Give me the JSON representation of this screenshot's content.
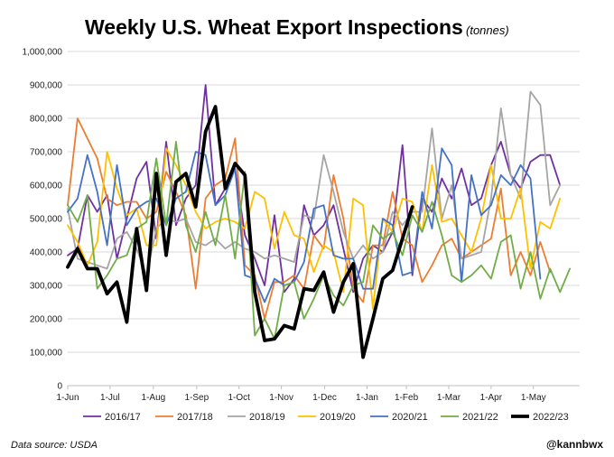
{
  "chart_data": {
    "type": "line",
    "title": "Weekly U.S. Wheat Export Inspections",
    "unit_label": "(tonnes)",
    "source": "Data source: USDA",
    "credit": "@kannbwx",
    "ylim": [
      0,
      1000000
    ],
    "yticks": [
      0,
      100000,
      200000,
      300000,
      400000,
      500000,
      600000,
      700000,
      800000,
      900000,
      1000000
    ],
    "ytick_labels": [
      "0",
      "100,000",
      "200,000",
      "300,000",
      "400,000",
      "500,000",
      "600,000",
      "700,000",
      "800,000",
      "900,000",
      "1,000,000"
    ],
    "xlim": [
      0,
      52
    ],
    "xticks": [
      0,
      4.3,
      8.7,
      13.1,
      17.4,
      21.7,
      26.1,
      30.4,
      34.4,
      38.7,
      43,
      47.3
    ],
    "xtick_labels": [
      "1-Jun",
      "1-Jul",
      "1-Aug",
      "1-Sep",
      "1-Oct",
      "1-Nov",
      "1-Dec",
      "1-Jan",
      "1-Feb",
      "1-Mar",
      "1-Apr",
      "1-May"
    ],
    "grid": true,
    "legend_position": "bottom",
    "series": [
      {
        "name": "2016/17",
        "color": "#7030a0",
        "width": 1.8,
        "values": [
          390000,
          410000,
          570000,
          520000,
          570000,
          380000,
          500000,
          620000,
          670000,
          440000,
          730000,
          480000,
          560000,
          600000,
          900000,
          540000,
          590000,
          650000,
          450000,
          380000,
          300000,
          510000,
          280000,
          320000,
          540000,
          450000,
          480000,
          540000,
          410000,
          280000,
          380000,
          420000,
          400000,
          460000,
          720000,
          330000,
          560000,
          520000,
          620000,
          560000,
          650000,
          540000,
          560000,
          660000,
          730000,
          630000,
          590000,
          670000,
          690000,
          690000,
          600000
        ]
      },
      {
        "name": "2017/18",
        "color": "#ed7d31",
        "width": 1.8,
        "values": [
          540000,
          800000,
          740000,
          680000,
          560000,
          540000,
          550000,
          550000,
          500000,
          520000,
          640000,
          580000,
          510000,
          290000,
          560000,
          600000,
          620000,
          740000,
          360000,
          330000,
          200000,
          310000,
          310000,
          330000,
          290000,
          450000,
          410000,
          630000,
          500000,
          290000,
          250000,
          420000,
          420000,
          580000,
          440000,
          420000,
          310000,
          360000,
          420000,
          440000,
          380000,
          400000,
          420000,
          440000,
          590000,
          330000,
          400000,
          330000,
          430000,
          340000
        ]
      },
      {
        "name": "2018/19",
        "color": "#a5a5a5",
        "width": 1.8,
        "values": [
          530000,
          380000,
          370000,
          360000,
          350000,
          440000,
          460000,
          410000,
          330000,
          470000,
          500000,
          490000,
          500000,
          430000,
          420000,
          440000,
          410000,
          430000,
          410000,
          400000,
          380000,
          390000,
          380000,
          370000,
          510000,
          500000,
          690000,
          580000,
          460000,
          380000,
          420000,
          380000,
          400000,
          520000,
          480000,
          520000,
          520000,
          770000,
          500000,
          600000,
          380000,
          390000,
          400000,
          560000,
          830000,
          630000,
          560000,
          880000,
          840000,
          540000,
          600000
        ]
      },
      {
        "name": "2019/20",
        "color": "#ffc000",
        "width": 1.8,
        "values": [
          480000,
          430000,
          360000,
          430000,
          700000,
          590000,
          510000,
          530000,
          420000,
          420000,
          710000,
          660000,
          600000,
          520000,
          470000,
          490000,
          500000,
          490000,
          470000,
          580000,
          560000,
          410000,
          520000,
          450000,
          440000,
          340000,
          420000,
          400000,
          280000,
          560000,
          540000,
          230000,
          500000,
          460000,
          560000,
          550000,
          460000,
          660000,
          490000,
          500000,
          450000,
          400000,
          500000,
          660000,
          500000,
          500000,
          590000,
          350000,
          490000,
          470000,
          560000
        ]
      },
      {
        "name": "2020/21",
        "color": "#4472c4",
        "width": 1.8,
        "values": [
          520000,
          560000,
          690000,
          580000,
          420000,
          660000,
          480000,
          530000,
          550000,
          560000,
          480000,
          560000,
          580000,
          700000,
          690000,
          540000,
          570000,
          650000,
          330000,
          320000,
          250000,
          320000,
          300000,
          310000,
          370000,
          530000,
          540000,
          390000,
          380000,
          380000,
          290000,
          290000,
          500000,
          480000,
          330000,
          340000,
          580000,
          470000,
          710000,
          660000,
          310000,
          630000,
          510000,
          540000,
          630000,
          600000,
          660000,
          620000,
          320000
        ]
      },
      {
        "name": "2021/22",
        "color": "#70ad47",
        "width": 1.8,
        "values": [
          540000,
          490000,
          570000,
          290000,
          330000,
          380000,
          390000,
          470000,
          490000,
          680000,
          480000,
          730000,
          480000,
          400000,
          520000,
          420000,
          570000,
          380000,
          640000,
          150000,
          200000,
          140000,
          300000,
          310000,
          200000,
          260000,
          330000,
          270000,
          240000,
          300000,
          310000,
          480000,
          440000,
          460000,
          390000,
          510000,
          460000,
          550000,
          450000,
          330000,
          310000,
          330000,
          360000,
          320000,
          430000,
          450000,
          290000,
          400000,
          260000,
          350000,
          280000,
          350000
        ]
      },
      {
        "name": "2022/23",
        "color": "#000000",
        "width": 3.8,
        "values": [
          355000,
          410000,
          350000,
          350000,
          275000,
          310000,
          190000,
          470000,
          285000,
          635000,
          390000,
          610000,
          635000,
          535000,
          760000,
          835000,
          590000,
          665000,
          630000,
          280000,
          135000,
          140000,
          180000,
          170000,
          290000,
          285000,
          340000,
          220000,
          310000,
          365000,
          85000,
          200000,
          320000,
          345000,
          440000,
          535000
        ]
      }
    ]
  }
}
